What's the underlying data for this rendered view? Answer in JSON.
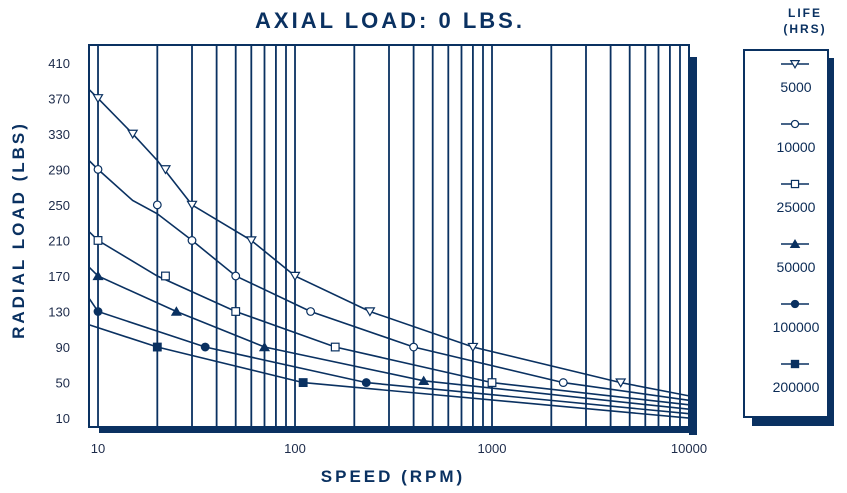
{
  "chart_data": {
    "type": "line",
    "title": "AXIAL LOAD: 0 LBS.",
    "xlabel": "SPEED (RPM)",
    "ylabel": "RADIAL LOAD (LBS)",
    "x_scale": "log",
    "xlim": [
      9,
      10000
    ],
    "ylim": [
      0,
      430
    ],
    "x_ticks": [
      10,
      100,
      1000,
      10000
    ],
    "x_tick_labels": [
      "10",
      "100",
      "1000",
      "10000"
    ],
    "y_ticks": [
      10,
      50,
      90,
      130,
      170,
      210,
      250,
      290,
      330,
      370,
      410
    ],
    "y_tick_labels": [
      "10",
      "50",
      "90",
      "130",
      "170",
      "210",
      "250",
      "290",
      "330",
      "370",
      "410"
    ],
    "grid": "vertical",
    "legend_title": "LIFE (HRS)",
    "legend_position": "right",
    "colors": {
      "line": "#0a3161",
      "shadow": "#0a3161"
    },
    "series": [
      {
        "name": "5000",
        "marker": "triangle-down-open",
        "points": [
          [
            9,
            380
          ],
          [
            10,
            370
          ],
          [
            15,
            330
          ],
          [
            20,
            300
          ],
          [
            30,
            250
          ],
          [
            60,
            210
          ],
          [
            100,
            170
          ],
          [
            240,
            130
          ],
          [
            800,
            90
          ],
          [
            4500,
            50
          ],
          [
            10000,
            35
          ]
        ]
      },
      {
        "name": "10000",
        "marker": "circle-open",
        "points": [
          [
            9,
            300
          ],
          [
            10,
            290
          ],
          [
            15,
            255
          ],
          [
            20,
            240
          ],
          [
            30,
            210
          ],
          [
            50,
            170
          ],
          [
            120,
            130
          ],
          [
            400,
            90
          ],
          [
            2300,
            50
          ],
          [
            10000,
            30
          ]
        ]
      },
      {
        "name": "25000",
        "marker": "square-open",
        "points": [
          [
            9,
            220
          ],
          [
            10,
            210
          ],
          [
            20,
            170
          ],
          [
            50,
            130
          ],
          [
            160,
            90
          ],
          [
            1000,
            50
          ],
          [
            10000,
            25
          ]
        ]
      },
      {
        "name": "50000",
        "marker": "triangle-up-filled",
        "points": [
          [
            9,
            180
          ],
          [
            10,
            170
          ],
          [
            25,
            130
          ],
          [
            70,
            90
          ],
          [
            450,
            52
          ],
          [
            10000,
            20
          ]
        ]
      },
      {
        "name": "100000",
        "marker": "circle-filled",
        "points": [
          [
            9,
            145
          ],
          [
            10,
            130
          ],
          [
            35,
            90
          ],
          [
            230,
            50
          ],
          [
            10000,
            15
          ]
        ]
      },
      {
        "name": "200000",
        "marker": "square-filled",
        "points": [
          [
            9,
            115
          ],
          [
            20,
            90
          ],
          [
            110,
            50
          ],
          [
            10000,
            10
          ]
        ]
      }
    ],
    "marker_points": [
      [
        [
          10,
          370
        ],
        [
          15,
          330
        ],
        [
          22,
          290
        ],
        [
          30,
          250
        ],
        [
          60,
          210
        ],
        [
          100,
          170
        ],
        [
          240,
          130
        ],
        [
          800,
          90
        ],
        [
          4500,
          50
        ]
      ],
      [
        [
          10,
          290
        ],
        [
          20,
          250
        ],
        [
          30,
          210
        ],
        [
          50,
          170
        ],
        [
          120,
          130
        ],
        [
          400,
          90
        ],
        [
          2300,
          50
        ]
      ],
      [
        [
          10,
          210
        ],
        [
          22,
          170
        ],
        [
          50,
          130
        ],
        [
          160,
          90
        ],
        [
          1000,
          50
        ]
      ],
      [
        [
          10,
          170
        ],
        [
          25,
          130
        ],
        [
          70,
          90
        ],
        [
          450,
          52
        ]
      ],
      [
        [
          10,
          130
        ],
        [
          35,
          90
        ],
        [
          230,
          50
        ]
      ],
      [
        [
          20,
          90
        ],
        [
          110,
          50
        ]
      ]
    ]
  }
}
